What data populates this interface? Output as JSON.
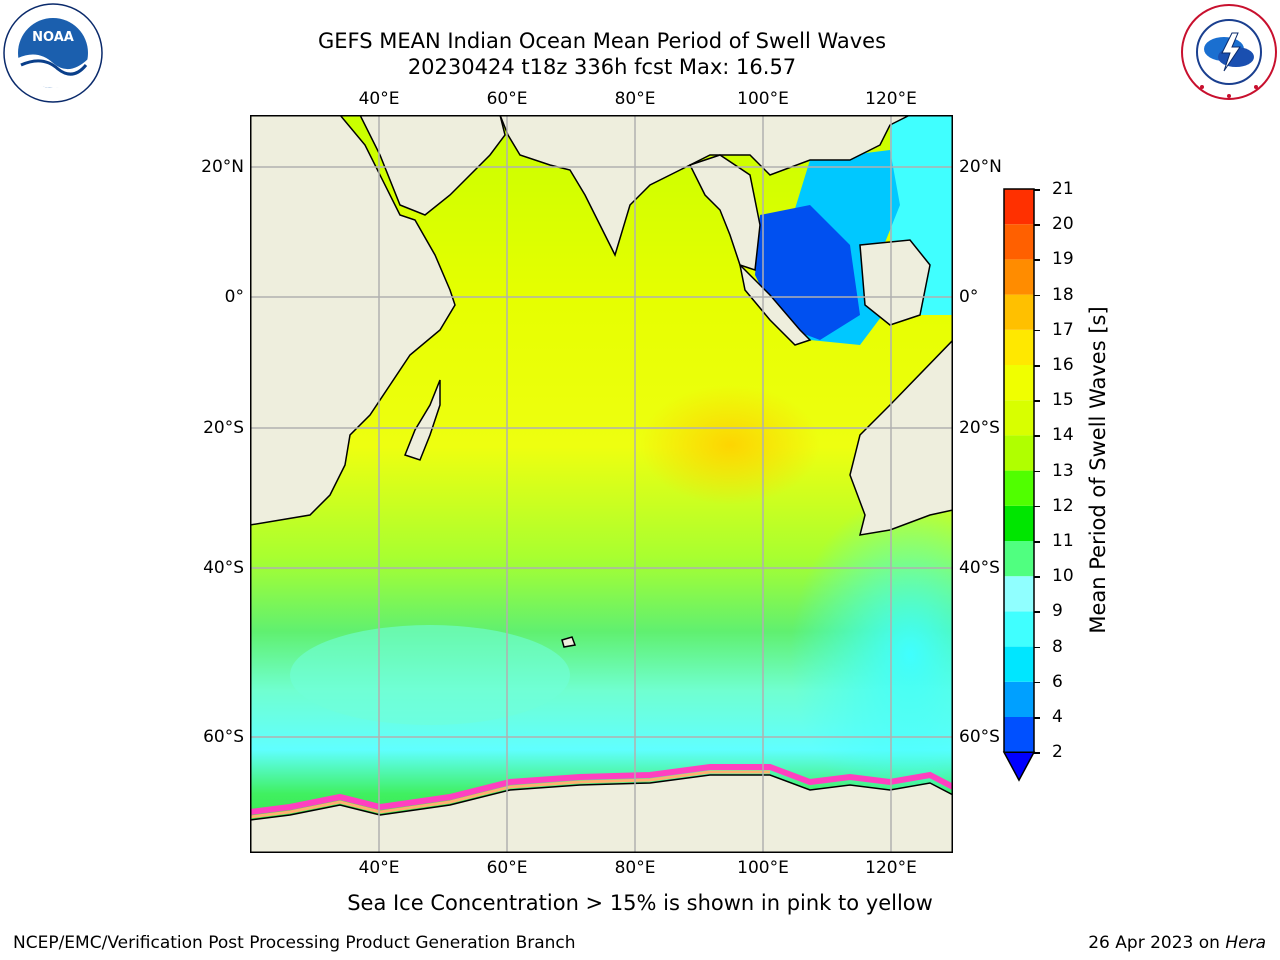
{
  "header": {
    "title_line1": "GEFS MEAN Indian Ocean Mean Period of Swell Waves",
    "title_line2": "20230424 t18z 336h fcst   Max: 16.57"
  },
  "logos": {
    "noaa": {
      "text": "NOAA",
      "ring_text": "NATIONAL OCEANIC AND ATMOSPHERIC ADMINISTRATION · U.S. DEPARTMENT OF COMMERCE"
    },
    "nws": {
      "ring_text": "NATIONAL WEATHER SERVICE"
    }
  },
  "map": {
    "lon_labels": [
      "40°E",
      "60°E",
      "80°E",
      "100°E",
      "120°E"
    ],
    "lat_labels": [
      "20°N",
      "0°",
      "20°S",
      "40°S",
      "60°S"
    ],
    "lon_values": [
      40,
      60,
      80,
      100,
      120
    ],
    "lat_values": [
      20,
      0,
      -20,
      -40,
      -60
    ],
    "extent": {
      "lon": [
        20,
        130
      ],
      "lat": [
        -70,
        27
      ]
    },
    "land_color": "#eeeedd",
    "grid_color": "#b0b0b0"
  },
  "colorbar": {
    "label": "Mean Period of Swell Waves [s]",
    "ticks": [
      "2",
      "4",
      "6",
      "8",
      "9",
      "10",
      "11",
      "12",
      "13",
      "14",
      "15",
      "16",
      "17",
      "18",
      "19",
      "20",
      "21"
    ],
    "colors": [
      "#0050ff",
      "#00a0ff",
      "#00e6ff",
      "#40ffff",
      "#90ffff",
      "#50ff80",
      "#00e600",
      "#50ff00",
      "#b0ff00",
      "#d8ff00",
      "#f0ff00",
      "#ffe800",
      "#ffc000",
      "#ff8c00",
      "#ff6000",
      "#ff3000"
    ],
    "extend_color": "#0000ff"
  },
  "footer": {
    "note": "Sea Ice Concentration > 15% is shown in pink to yellow",
    "credit": "NCEP/EMC/Verification Post Processing Product Generation Branch",
    "date_prefix": "26 Apr 2023 on ",
    "host": "Hera"
  }
}
